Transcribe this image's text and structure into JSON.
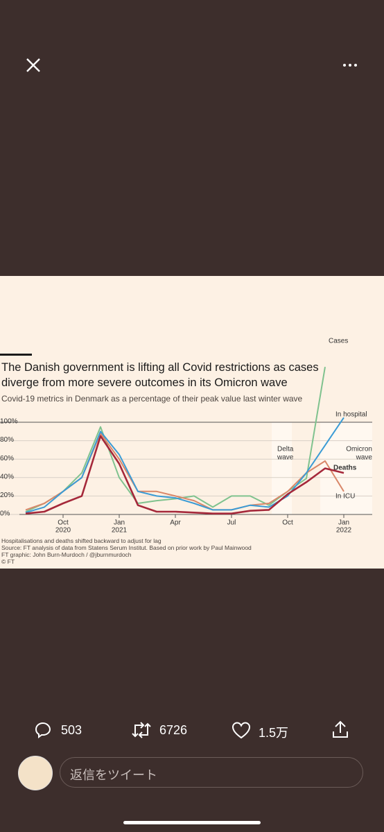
{
  "ui": {
    "reply_count": "503",
    "retweet_count": "6726",
    "like_count": "1.5万",
    "reply_placeholder": "返信をツイート"
  },
  "chart_data": {
    "type": "line",
    "title": "The Danish government is lifting all Covid restrictions as cases diverge from more severe outcomes in its Omicron wave",
    "subtitle": "Covid-19 metrics in Denmark as a percentage of their peak value last winter wave",
    "footnotes": [
      "Hospitalisations and deaths shifted backward to adjust for lag",
      "Source: FT analysis of data from Statens Serum Institut. Based on prior work by Paul Mainwood",
      "FT graphic: John Burn-Murdoch / @jburnmurdoch",
      "© FT"
    ],
    "x": [
      "2020-08",
      "2020-09",
      "2020-10",
      "2020-11",
      "2020-12",
      "2021-01",
      "2021-02",
      "2021-03",
      "2021-04",
      "2021-05",
      "2021-06",
      "2021-07",
      "2021-08",
      "2021-09",
      "2021-10",
      "2021-11",
      "2021-12",
      "2022-01"
    ],
    "xlim": [
      "2020-08",
      "2022-02"
    ],
    "xticks": [
      {
        "value": "2020-10",
        "label": [
          "Oct",
          "2020"
        ]
      },
      {
        "value": "2021-01",
        "label": [
          "Jan",
          "2021"
        ]
      },
      {
        "value": "2021-04",
        "label": [
          "Apr"
        ]
      },
      {
        "value": "2021-07",
        "label": [
          "Jul"
        ]
      },
      {
        "value": "2021-10",
        "label": [
          "Oct"
        ]
      },
      {
        "value": "2022-01",
        "label": [
          "Jan",
          "2022"
        ]
      }
    ],
    "ylim": [
      0,
      100
    ],
    "yticks": [
      {
        "value": 0,
        "label": "0%"
      },
      {
        "value": 20,
        "label": "20%"
      },
      {
        "value": 40,
        "label": "40%"
      },
      {
        "value": 60,
        "label": "60%"
      },
      {
        "value": 80,
        "label": "80%"
      },
      {
        "value": 100,
        "label": "100%"
      }
    ],
    "grid": true,
    "series": [
      {
        "name": "Cases",
        "color": "#7fc28e",
        "values": [
          3,
          12,
          25,
          45,
          95,
          40,
          12,
          15,
          17,
          20,
          8,
          20,
          20,
          10,
          25,
          39,
          160,
          null
        ]
      },
      {
        "name": "In ICU",
        "color": "#d98769",
        "values": [
          5,
          12,
          25,
          40,
          88,
          60,
          25,
          25,
          20,
          15,
          5,
          5,
          10,
          12,
          25,
          45,
          58,
          25
        ]
      },
      {
        "name": "In hospital",
        "color": "#3a9bd5",
        "values": [
          2,
          8,
          25,
          40,
          90,
          65,
          25,
          20,
          18,
          12,
          5,
          5,
          10,
          8,
          20,
          45,
          75,
          105
        ]
      },
      {
        "name": "Deaths",
        "color": "#a5283a",
        "values": [
          1,
          3,
          12,
          20,
          85,
          55,
          10,
          3,
          3,
          2,
          1,
          1,
          4,
          5,
          22,
          35,
          50,
          45
        ]
      }
    ],
    "annotations": [
      [
        "Delta",
        "wave"
      ],
      [
        "Omicron",
        "wave"
      ]
    ]
  }
}
